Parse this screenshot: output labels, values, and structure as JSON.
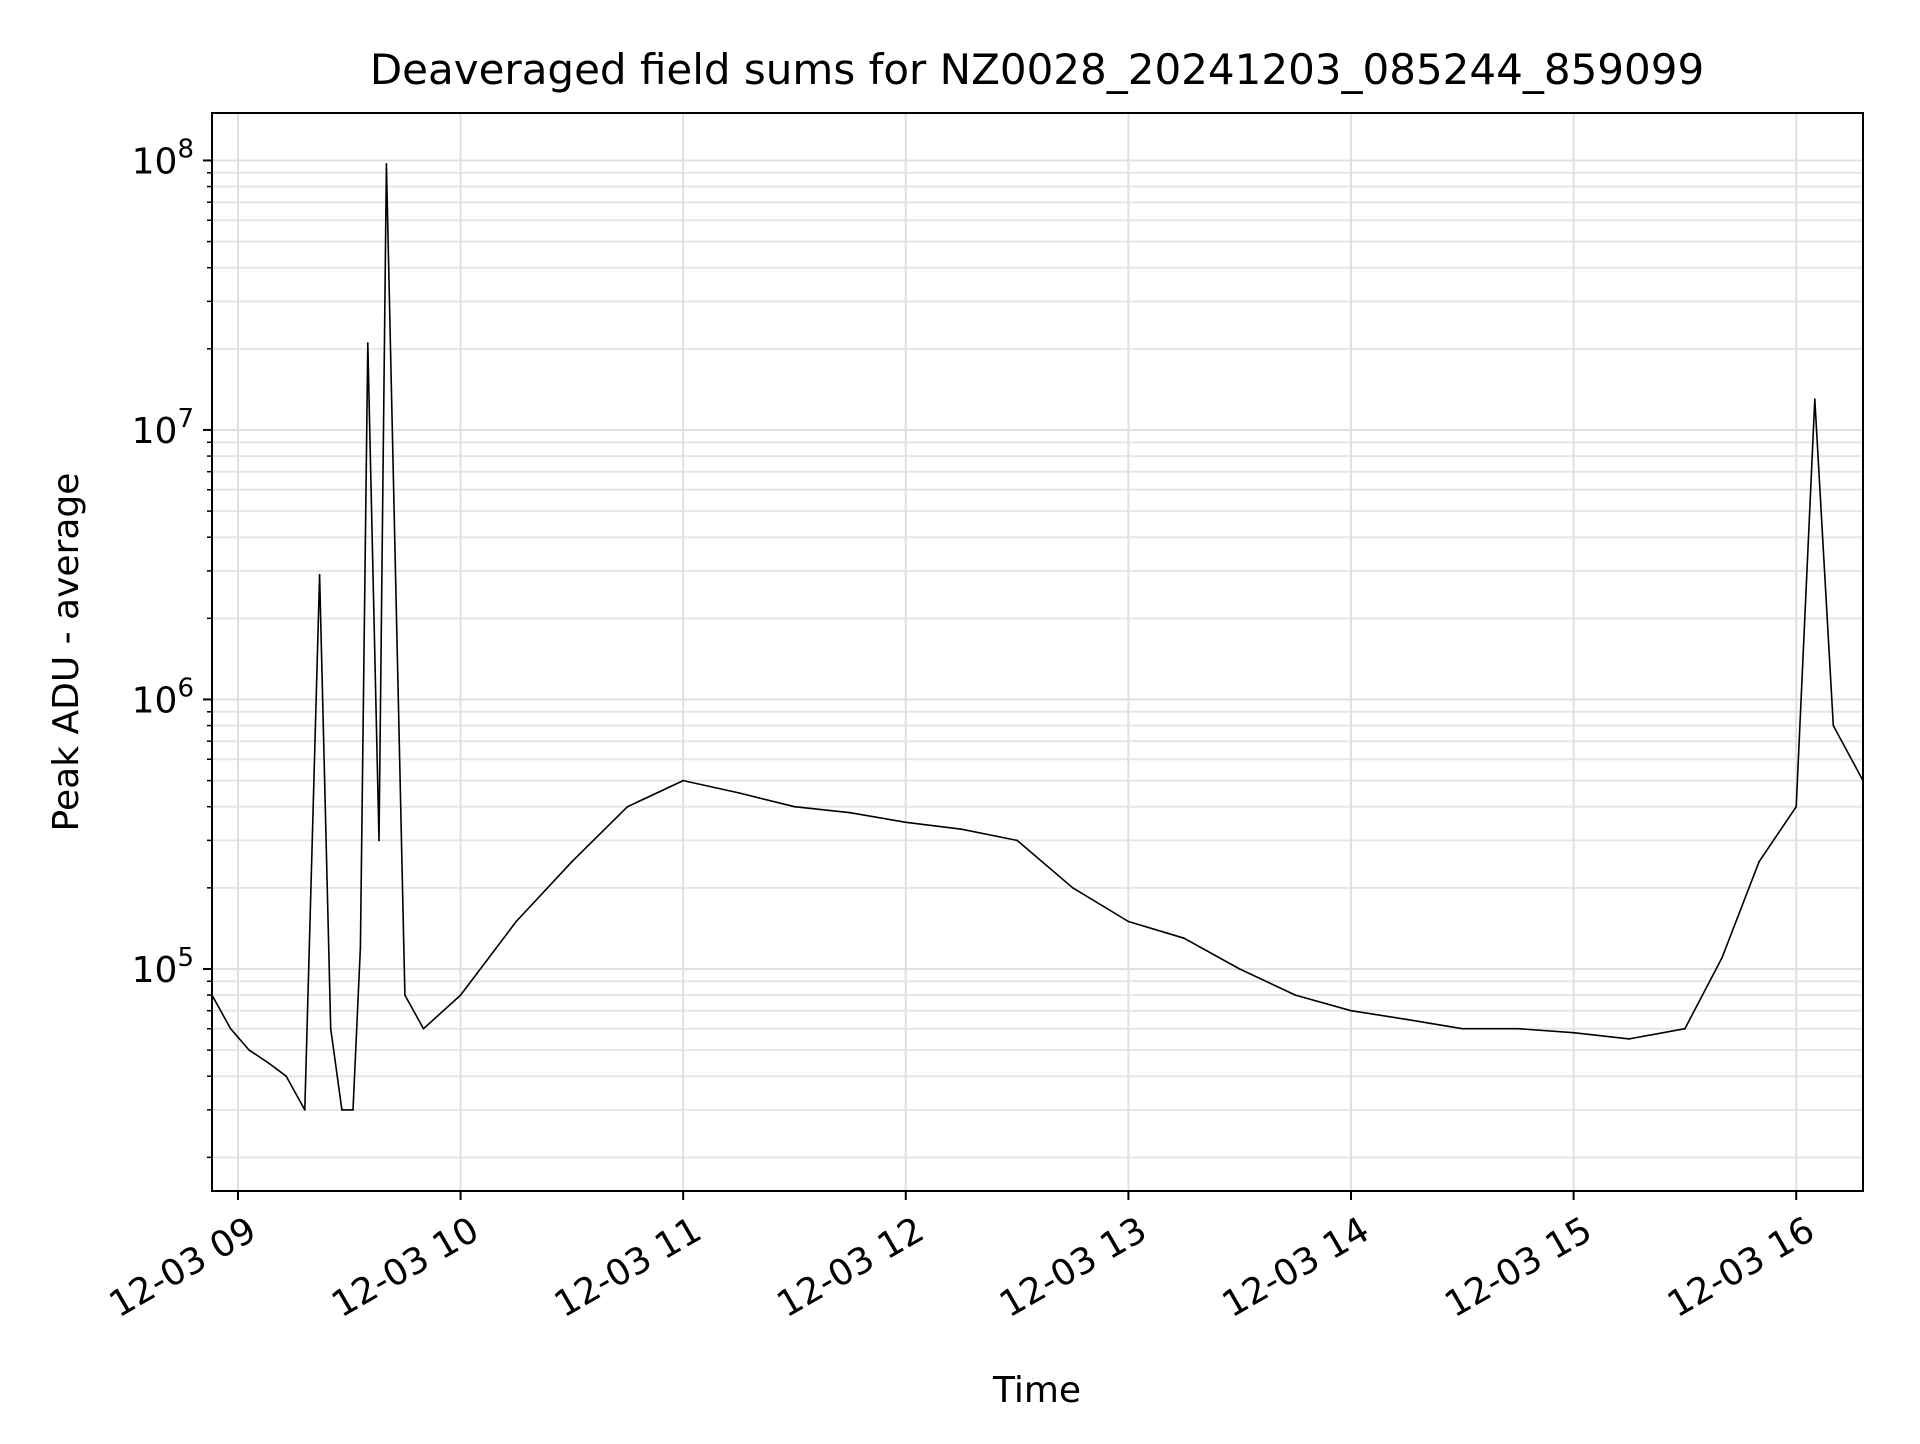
{
  "chart_data": {
    "type": "line",
    "title": "Deaveraged field sums for NZ0028_20241203_085244_859099",
    "xlabel": "Time",
    "ylabel": "Peak ADU - average",
    "y_scale": "log",
    "ylim": [
      15000,
      150000000
    ],
    "xlim": [
      "2024-12-03 08:53",
      "2024-12-03 16:18"
    ],
    "x_ticks": [
      {
        "x": "2024-12-03 09:00",
        "label": "12-03 09"
      },
      {
        "x": "2024-12-03 10:00",
        "label": "12-03 10"
      },
      {
        "x": "2024-12-03 11:00",
        "label": "12-03 11"
      },
      {
        "x": "2024-12-03 12:00",
        "label": "12-03 12"
      },
      {
        "x": "2024-12-03 13:00",
        "label": "12-03 13"
      },
      {
        "x": "2024-12-03 14:00",
        "label": "12-03 14"
      },
      {
        "x": "2024-12-03 15:00",
        "label": "12-03 15"
      },
      {
        "x": "2024-12-03 16:00",
        "label": "12-03 16"
      }
    ],
    "y_ticks": [
      {
        "y": 100000,
        "base": "10",
        "exp": "5"
      },
      {
        "y": 1000000,
        "base": "10",
        "exp": "6"
      },
      {
        "y": 10000000,
        "base": "10",
        "exp": "7"
      },
      {
        "y": 100000000,
        "base": "10",
        "exp": "8"
      }
    ],
    "grid": true,
    "line_color": "#000000",
    "series": [
      {
        "x": [
          "2024-12-03 08:53",
          "2024-12-03 08:58",
          "2024-12-03 09:03",
          "2024-12-03 09:08",
          "2024-12-03 09:13",
          "2024-12-03 09:18",
          "2024-12-03 09:22",
          "2024-12-03 09:25",
          "2024-12-03 09:28",
          "2024-12-03 09:31",
          "2024-12-03 09:33",
          "2024-12-03 09:35",
          "2024-12-03 09:38",
          "2024-12-03 09:40",
          "2024-12-03 09:45",
          "2024-12-03 09:50",
          "2024-12-03 10:00",
          "2024-12-03 10:15",
          "2024-12-03 10:30",
          "2024-12-03 10:45",
          "2024-12-03 11:00",
          "2024-12-03 11:15",
          "2024-12-03 11:30",
          "2024-12-03 11:45",
          "2024-12-03 12:00",
          "2024-12-03 12:15",
          "2024-12-03 12:30",
          "2024-12-03 12:45",
          "2024-12-03 13:00",
          "2024-12-03 13:15",
          "2024-12-03 13:30",
          "2024-12-03 13:45",
          "2024-12-03 14:00",
          "2024-12-03 14:15",
          "2024-12-03 14:30",
          "2024-12-03 14:45",
          "2024-12-03 15:00",
          "2024-12-03 15:15",
          "2024-12-03 15:30",
          "2024-12-03 15:40",
          "2024-12-03 15:50",
          "2024-12-03 16:00",
          "2024-12-03 16:05",
          "2024-12-03 16:10",
          "2024-12-03 16:18"
        ],
        "y": [
          80000,
          60000,
          50000,
          45000,
          40000,
          30000,
          2900000,
          60000,
          30000,
          30000,
          120000,
          21000000,
          300000,
          97000000,
          80000,
          60000,
          80000,
          150000,
          250000,
          400000,
          500000,
          450000,
          400000,
          380000,
          350000,
          330000,
          300000,
          200000,
          150000,
          130000,
          100000,
          80000,
          70000,
          65000,
          60000,
          60000,
          58000,
          55000,
          60000,
          110000,
          250000,
          400000,
          13000000,
          800000,
          500000
        ]
      }
    ]
  }
}
